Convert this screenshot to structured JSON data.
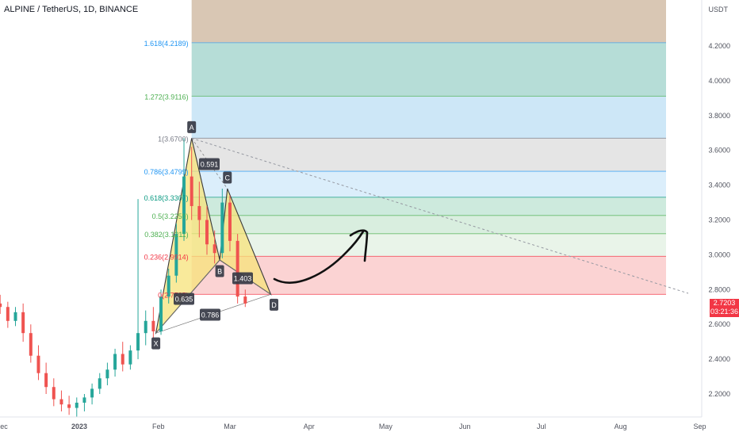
{
  "header": {
    "symbol": "ALPINE / TetherUS",
    "interval": "1D",
    "exchange": "BINANCE"
  },
  "price_axis": {
    "currency": "USDT",
    "ticks": [
      "4.2000",
      "4.0000",
      "3.8000",
      "3.6000",
      "3.4000",
      "3.2000",
      "3.0000",
      "2.8000",
      "2.6000",
      "2.4000",
      "2.2000"
    ]
  },
  "time_axis": {
    "labels": [
      "ec",
      "2023",
      "Feb",
      "Mar",
      "Apr",
      "May",
      "Jun",
      "Jul",
      "Aug",
      "Sep"
    ]
  },
  "last_price": {
    "value": "2.7203",
    "countdown": "03:21:36",
    "color": "#f23645"
  },
  "colors": {
    "up": "#26a69a",
    "down": "#ef5350",
    "pattern_fill": "#f7e37a",
    "pattern_stroke": "#3a3a3a"
  },
  "chart_data": {
    "type": "candlestick",
    "title": "",
    "ylim": [
      2.06,
      4.48
    ],
    "xrange": [
      "2022-11-28",
      "2023-09-10"
    ],
    "fib_levels": [
      {
        "ratio": "1.618",
        "price": 4.2189,
        "label": "1.618(4.2189)",
        "fill": "#d9c7b4",
        "label_color": "#2196f3"
      },
      {
        "ratio": "1.272",
        "price": 3.9116,
        "label": "1.272(3.9116)",
        "fill": "#b6ddd7",
        "label_color": "#4caf50"
      },
      {
        "ratio": "1",
        "price": 3.67,
        "label": "1(3.6700)",
        "fill": "#cde7f7",
        "label_color": "#787b86"
      },
      {
        "ratio": "0.786",
        "price": 3.4799,
        "label": "0.786(3.4799)",
        "fill": "#e5e5e5",
        "label_color": "#2196f3"
      },
      {
        "ratio": "0.618",
        "price": 3.3307,
        "label": "0.618(3.3307)",
        "fill": "#dbeefb",
        "label_color": "#089981"
      },
      {
        "ratio": "0.5",
        "price": 3.2259,
        "label": "0.5(3.2259)",
        "fill": "#cdeadd",
        "label_color": "#4caf50"
      },
      {
        "ratio": "0.382",
        "price": 3.1211,
        "label": "0.382(3.1211)",
        "fill": "#d9eedf",
        "label_color": "#4caf50"
      },
      {
        "ratio": "0.236",
        "price": 2.9914,
        "label": "0.236(2.9914)",
        "fill": "#e9f4e9",
        "label_color": "#f23645"
      },
      {
        "ratio": "0",
        "price": 2.7725,
        "label": "0(2.7725)",
        "fill": "#fbd3d3",
        "label_color": "#f23645"
      }
    ],
    "harmonic_pattern": {
      "points": [
        {
          "label": "X",
          "date": "2023-01-31",
          "price": 2.55
        },
        {
          "label": "A",
          "date": "2023-02-14",
          "price": 3.67
        },
        {
          "label": "B",
          "date": "2023-02-25",
          "price": 2.97
        },
        {
          "label": "C",
          "date": "2023-02-28",
          "price": 3.38
        },
        {
          "label": "D",
          "date": "2023-03-17",
          "price": 2.7725
        }
      ],
      "ratios": [
        {
          "label": "0.591",
          "between": "XA-AB"
        },
        {
          "label": "0.635",
          "between": "AB-XD"
        },
        {
          "label": "1.403",
          "between": "BC-CD"
        },
        {
          "label": "0.786",
          "between": "XA-XD"
        }
      ]
    },
    "candles": [
      {
        "date": "2022-11-28",
        "open": 2.75,
        "high": 2.78,
        "low": 2.69,
        "close": 2.72
      },
      {
        "date": "2022-12-01",
        "open": 2.72,
        "high": 2.77,
        "low": 2.66,
        "close": 2.7
      },
      {
        "date": "2022-12-04",
        "open": 2.7,
        "high": 2.73,
        "low": 2.58,
        "close": 2.62
      },
      {
        "date": "2022-12-07",
        "open": 2.62,
        "high": 2.7,
        "low": 2.59,
        "close": 2.67
      },
      {
        "date": "2022-12-10",
        "open": 2.67,
        "high": 2.72,
        "low": 2.5,
        "close": 2.55
      },
      {
        "date": "2022-12-13",
        "open": 2.55,
        "high": 2.6,
        "low": 2.38,
        "close": 2.42
      },
      {
        "date": "2022-12-16",
        "open": 2.42,
        "high": 2.48,
        "low": 2.28,
        "close": 2.32
      },
      {
        "date": "2022-12-19",
        "open": 2.32,
        "high": 2.38,
        "low": 2.2,
        "close": 2.24
      },
      {
        "date": "2022-12-22",
        "open": 2.24,
        "high": 2.29,
        "low": 2.13,
        "close": 2.17
      },
      {
        "date": "2022-12-25",
        "open": 2.17,
        "high": 2.22,
        "low": 2.1,
        "close": 2.14
      },
      {
        "date": "2022-12-28",
        "open": 2.14,
        "high": 2.19,
        "low": 2.08,
        "close": 2.12
      },
      {
        "date": "2022-12-31",
        "open": 2.12,
        "high": 2.18,
        "low": 2.07,
        "close": 2.15
      },
      {
        "date": "2023-01-03",
        "open": 2.15,
        "high": 2.2,
        "low": 2.1,
        "close": 2.18
      },
      {
        "date": "2023-01-06",
        "open": 2.18,
        "high": 2.26,
        "low": 2.14,
        "close": 2.23
      },
      {
        "date": "2023-01-09",
        "open": 2.23,
        "high": 2.32,
        "low": 2.2,
        "close": 2.29
      },
      {
        "date": "2023-01-12",
        "open": 2.29,
        "high": 2.38,
        "low": 2.25,
        "close": 2.34
      },
      {
        "date": "2023-01-15",
        "open": 2.34,
        "high": 2.46,
        "low": 2.3,
        "close": 2.43
      },
      {
        "date": "2023-01-18",
        "open": 2.43,
        "high": 2.5,
        "low": 2.33,
        "close": 2.37
      },
      {
        "date": "2023-01-21",
        "open": 2.37,
        "high": 2.48,
        "low": 2.34,
        "close": 2.45
      },
      {
        "date": "2023-01-24",
        "open": 2.45,
        "high": 3.32,
        "low": 2.4,
        "close": 2.55
      },
      {
        "date": "2023-01-27",
        "open": 2.55,
        "high": 2.68,
        "low": 2.48,
        "close": 2.62
      },
      {
        "date": "2023-01-30",
        "open": 2.62,
        "high": 2.7,
        "low": 2.52,
        "close": 2.56
      },
      {
        "date": "2023-02-02",
        "open": 2.56,
        "high": 2.8,
        "low": 2.54,
        "close": 2.76
      },
      {
        "date": "2023-02-05",
        "open": 2.76,
        "high": 2.92,
        "low": 2.72,
        "close": 2.88
      },
      {
        "date": "2023-02-08",
        "open": 2.88,
        "high": 3.18,
        "low": 2.84,
        "close": 3.12
      },
      {
        "date": "2023-02-11",
        "open": 3.12,
        "high": 3.67,
        "low": 3.08,
        "close": 3.45
      },
      {
        "date": "2023-02-14",
        "open": 3.45,
        "high": 3.62,
        "low": 3.2,
        "close": 3.28
      },
      {
        "date": "2023-02-17",
        "open": 3.28,
        "high": 3.42,
        "low": 3.1,
        "close": 3.2
      },
      {
        "date": "2023-02-20",
        "open": 3.2,
        "high": 3.28,
        "low": 3.0,
        "close": 3.06
      },
      {
        "date": "2023-02-23",
        "open": 3.06,
        "high": 3.14,
        "low": 2.95,
        "close": 3.01
      },
      {
        "date": "2023-02-26",
        "open": 3.01,
        "high": 3.38,
        "low": 2.98,
        "close": 3.3
      },
      {
        "date": "2023-03-01",
        "open": 3.3,
        "high": 3.34,
        "low": 3.02,
        "close": 3.08
      },
      {
        "date": "2023-03-04",
        "open": 3.08,
        "high": 3.12,
        "low": 2.72,
        "close": 2.76
      },
      {
        "date": "2023-03-07",
        "open": 2.76,
        "high": 2.8,
        "low": 2.7,
        "close": 2.72
      }
    ]
  }
}
